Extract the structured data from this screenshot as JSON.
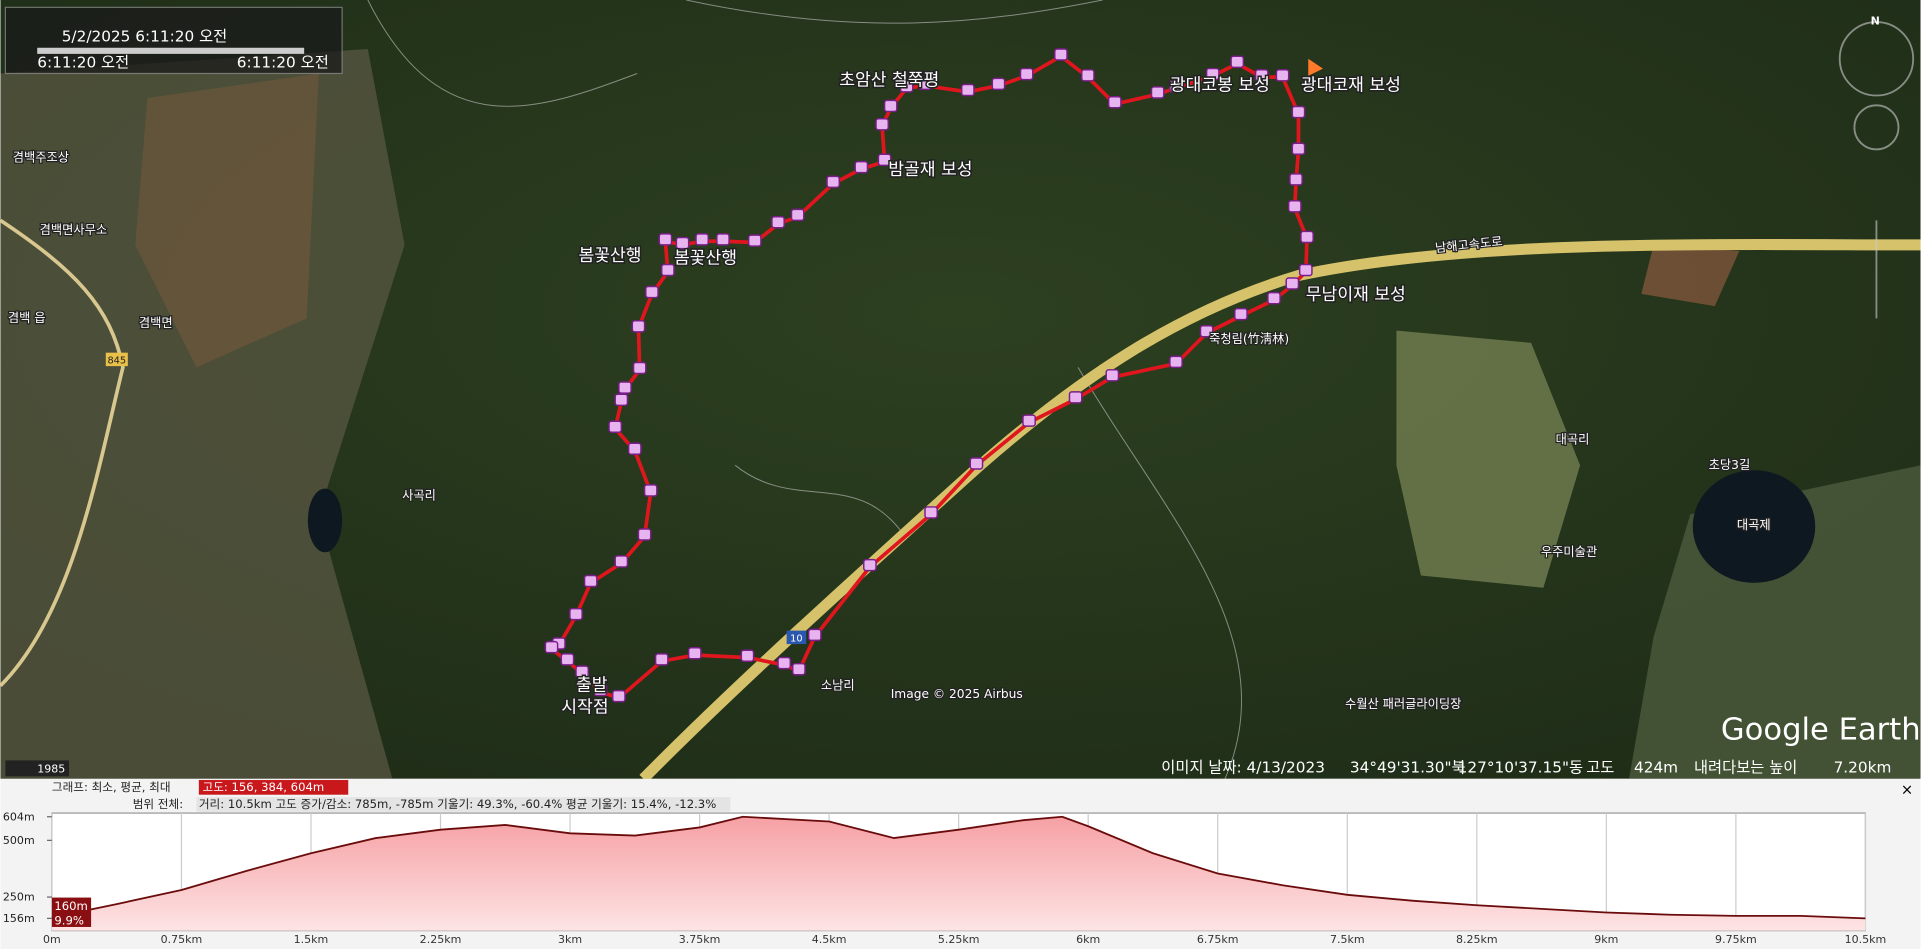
{
  "timeline": {
    "date": "5/2/2025   6:11:20 오전",
    "start": "6:11:20 오전",
    "end": "6:11:20 오전"
  },
  "map": {
    "labels": [
      "초암산 철쭉평",
      "광대코봉 보성",
      "광대코재 보성",
      "밤골재 보성",
      "봄꽃산행",
      "봄꽃산행",
      "무남이재 보성",
      "죽청림(竹淸林)",
      "사곡리",
      "소남리",
      "수월산 패러글라이딩장",
      "대곡제",
      "우주미술관",
      "대곡리",
      "초당3길",
      "겸백주조상",
      "겸백면사무소",
      "겸백 읍",
      "겸백면",
      "남해고속도로",
      "출발",
      "시작점",
      "845",
      "10"
    ],
    "attribution": "Image © 2025 Airbus",
    "logo": "Google Earth",
    "year": "1985",
    "north": "N"
  },
  "status": {
    "image_date": "이미지 날짜: 4/13/2023",
    "lat": "34°49'31.30\"북",
    "lon": "127°10'37.15\"동",
    "alt_label": "고도",
    "alt": "424m",
    "eye_label": "내려다보는 높이",
    "eye": "7.20km"
  },
  "profile": {
    "graph_label": "그래프: 최소, 평균, 최대",
    "graph_value": "고도: 156, 384, 604m",
    "range_label": "범위 전체:",
    "range_value": "거리: 10.5km 고도 증가/감소: 785m, -785m 기울기: 49.3%, -60.4% 평균 기울기: 15.4%, -12.3%",
    "cursor_alt": "160m",
    "cursor_slope": "9.9%",
    "xlim": [
      0,
      10.5
    ],
    "ylim": [
      156,
      604
    ],
    "xticks": [
      {
        "value": 0,
        "label": "0m"
      },
      {
        "value": 0.75,
        "label": "0.75km"
      },
      {
        "value": 1.5,
        "label": "1.5km"
      },
      {
        "value": 2.25,
        "label": "2.25km"
      },
      {
        "value": 3,
        "label": "3km"
      },
      {
        "value": 3.75,
        "label": "3.75km"
      },
      {
        "value": 4.5,
        "label": "4.5km"
      },
      {
        "value": 5.25,
        "label": "5.25km"
      },
      {
        "value": 6,
        "label": "6km"
      },
      {
        "value": 6.75,
        "label": "6.75km"
      },
      {
        "value": 7.5,
        "label": "7.5km"
      },
      {
        "value": 8.25,
        "label": "8.25km"
      },
      {
        "value": 9,
        "label": "9km"
      },
      {
        "value": 9.75,
        "label": "9.75km"
      },
      {
        "value": 10.5,
        "label": "10.5km"
      }
    ],
    "yticks": [
      {
        "value": 604,
        "label": "604m"
      },
      {
        "value": 500,
        "label": "500m"
      },
      {
        "value": 250,
        "label": "250m"
      },
      {
        "value": 156,
        "label": "156m"
      }
    ],
    "distance": [
      0,
      0.375,
      0.75,
      1.125,
      1.5,
      1.875,
      2.25,
      2.625,
      3,
      3.375,
      3.75,
      4.0,
      4.5,
      4.875,
      5.25,
      5.625,
      5.85,
      6.0,
      6.375,
      6.75,
      7.125,
      7.5,
      7.875,
      8.25,
      8.625,
      9,
      9.375,
      9.75,
      10.125,
      10.5
    ],
    "elevation": [
      160,
      219,
      281,
      365,
      443,
      510,
      547,
      568,
      531,
      521,
      557,
      604,
      583,
      510,
      547,
      589,
      604,
      562,
      443,
      354,
      302,
      260,
      234,
      214,
      198,
      182,
      172,
      167,
      167,
      156
    ]
  }
}
